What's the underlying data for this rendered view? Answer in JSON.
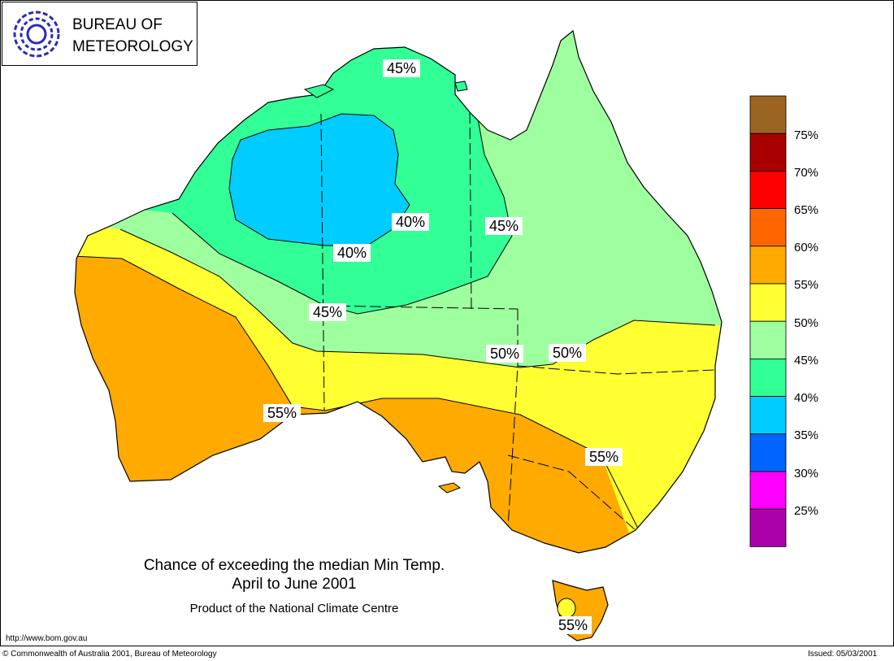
{
  "header": {
    "logo_line1": "BUREAU OF",
    "logo_line2": "METEOROLOGY"
  },
  "title": {
    "line1": "Chance of exceeding the median Min Temp.",
    "line2": "April to June 2001",
    "product": "Product of the National Climate Centre"
  },
  "footer": {
    "url": "http://www.bom.gov.au",
    "copyright": "© Commonwealth of Australia 2001, Bureau of Meteorology",
    "issued": "Issued: 05/03/2001"
  },
  "legend": {
    "colors": [
      "#9C6422",
      "#A80000",
      "#FF0000",
      "#FF6600",
      "#FFAA00",
      "#FFFF32",
      "#9EFF9E",
      "#32FF96",
      "#00CCFF",
      "#0064FF",
      "#FF00FF",
      "#AA00AA"
    ],
    "labels": [
      "75%",
      "70%",
      "65%",
      "60%",
      "55%",
      "50%",
      "45%",
      "40%",
      "35%",
      "30%",
      "25%"
    ]
  },
  "zone_colors": {
    "orange": "#FFAA00",
    "yellow": "#FFFF32",
    "light_green": "#9EFF9E",
    "green": "#32FF96",
    "cyan": "#00CCFF"
  },
  "contour_labels": [
    "45%",
    "40%",
    "45%",
    "40%",
    "45%",
    "50%",
    "50%",
    "55%",
    "55%",
    "55%"
  ]
}
